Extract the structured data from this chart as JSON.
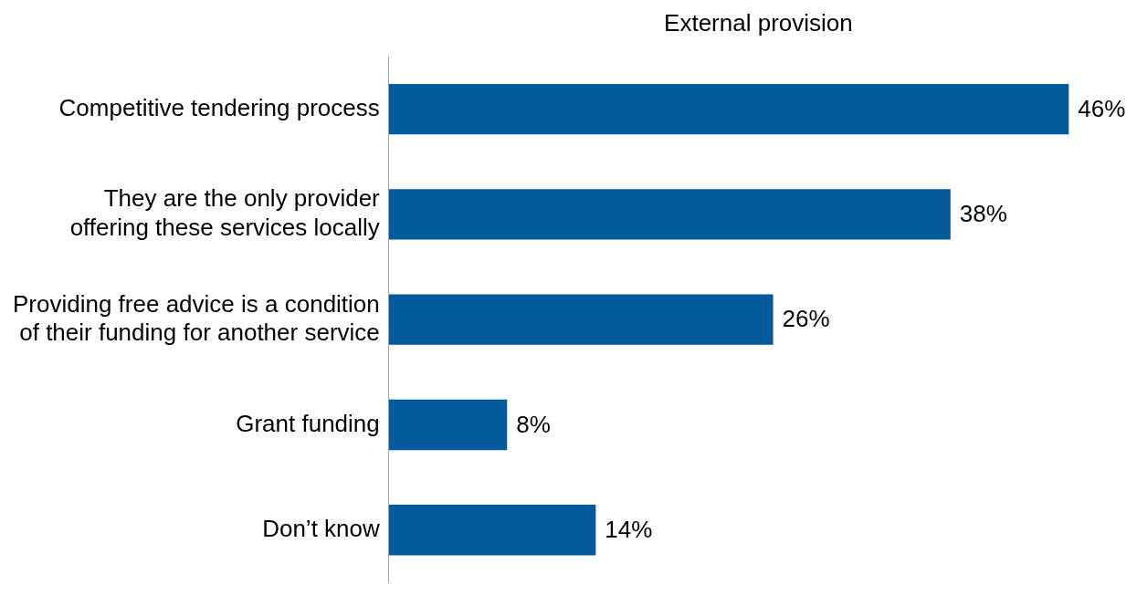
{
  "chart_data": {
    "type": "bar",
    "orientation": "horizontal",
    "title": "External provision",
    "categories": [
      "Competitive tendering process",
      "They are the only provider offering these services locally",
      "Providing free advice is a condition of their funding for another service",
      "Grant funding",
      "Don’t know"
    ],
    "values": [
      46,
      38,
      26,
      8,
      14
    ],
    "value_labels": [
      "46%",
      "38%",
      "26%",
      "8%",
      "14%"
    ],
    "color": "#005a9c",
    "tick_labels": "y",
    "legend": false
  }
}
